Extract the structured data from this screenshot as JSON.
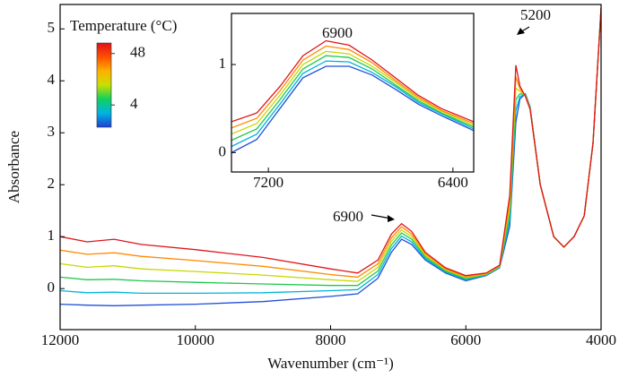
{
  "chart_data": [
    {
      "type": "line",
      "y_label": "Absorbance",
      "x_label": "Wavenumber (cm⁻¹)",
      "x": [
        12000,
        11600,
        11200,
        10800,
        10000,
        9000,
        8000,
        7600,
        7300,
        7100,
        6950,
        6800,
        6600,
        6300,
        6000,
        5700,
        5500,
        5350,
        5260,
        5200,
        5120,
        5050,
        4900,
        4700,
        4550,
        4400,
        4250,
        4120,
        4000
      ],
      "xlim": [
        12000,
        4000
      ],
      "xticks": [
        12000,
        10000,
        8000,
        6000,
        4000
      ],
      "ylim": [
        -0.79,
        5.47
      ],
      "yticks": [
        0,
        1,
        2,
        3,
        4,
        5
      ],
      "series": [
        {
          "color": "#1f4fd8",
          "values": [
            -0.3,
            -0.32,
            -0.33,
            -0.32,
            -0.3,
            -0.25,
            -0.15,
            -0.1,
            0.2,
            0.7,
            0.95,
            0.85,
            0.55,
            0.3,
            0.15,
            0.25,
            0.4,
            1.2,
            3.2,
            3.65,
            3.75,
            3.5,
            2.0,
            1.0,
            0.8,
            1.0,
            1.4,
            2.8,
            5.4
          ]
        },
        {
          "color": "#00b4d8",
          "values": [
            -0.04,
            -0.08,
            -0.07,
            -0.09,
            -0.09,
            -0.08,
            -0.04,
            -0.02,
            0.27,
            0.77,
            1.01,
            0.9,
            0.58,
            0.32,
            0.17,
            0.26,
            0.41,
            1.32,
            3.42,
            3.7,
            3.74,
            3.49,
            2.0,
            1.0,
            0.8,
            1.0,
            1.4,
            2.8,
            5.4
          ]
        },
        {
          "color": "#1ec850",
          "values": [
            0.22,
            0.17,
            0.18,
            0.15,
            0.12,
            0.09,
            0.06,
            0.06,
            0.34,
            0.84,
            1.07,
            0.95,
            0.61,
            0.34,
            0.19,
            0.27,
            0.42,
            1.44,
            3.64,
            3.75,
            3.73,
            3.48,
            2.0,
            1.0,
            0.8,
            1.0,
            1.4,
            2.8,
            5.4
          ]
        },
        {
          "color": "#c8d800",
          "values": [
            0.48,
            0.41,
            0.44,
            0.38,
            0.33,
            0.26,
            0.17,
            0.14,
            0.41,
            0.91,
            1.13,
            1.0,
            0.64,
            0.36,
            0.21,
            0.28,
            0.43,
            1.56,
            3.86,
            3.8,
            3.72,
            3.47,
            2.0,
            1.0,
            0.8,
            1.0,
            1.4,
            2.8,
            5.4
          ]
        },
        {
          "color": "#ff8a00",
          "values": [
            0.74,
            0.66,
            0.69,
            0.62,
            0.54,
            0.43,
            0.27,
            0.22,
            0.48,
            0.98,
            1.19,
            1.05,
            0.67,
            0.38,
            0.23,
            0.29,
            0.44,
            1.68,
            4.08,
            3.85,
            3.71,
            3.46,
            2.0,
            1.0,
            0.8,
            1.0,
            1.4,
            2.8,
            5.4
          ]
        },
        {
          "color": "#e0151a",
          "values": [
            1.0,
            0.9,
            0.95,
            0.85,
            0.75,
            0.6,
            0.38,
            0.3,
            0.55,
            1.05,
            1.25,
            1.1,
            0.7,
            0.4,
            0.25,
            0.3,
            0.45,
            1.8,
            4.3,
            3.9,
            3.7,
            3.45,
            2.0,
            1.0,
            0.8,
            1.0,
            1.4,
            2.8,
            5.4
          ]
        }
      ],
      "annotations": [
        "6900",
        "5200"
      ],
      "colorbar": {
        "title": "Temperature (°C)",
        "colors": [
          "#1f3fd8",
          "#00b4e0",
          "#10d060",
          "#c8e000",
          "#ffb000",
          "#ff5000",
          "#e0101a"
        ],
        "clim": [
          -15,
          57
        ],
        "ticks": [
          4,
          48
        ]
      }
    },
    {
      "type": "line",
      "x": [
        7360,
        7250,
        7150,
        7050,
        6950,
        6850,
        6750,
        6650,
        6550,
        6450,
        6310
      ],
      "xlim": [
        7360,
        6310
      ],
      "xticks": [
        7200,
        6400
      ],
      "ylim": [
        -0.22,
        1.58
      ],
      "yticks": [
        0,
        1
      ],
      "series": [
        {
          "color": "#1f4fd8",
          "values": [
            0.0,
            0.15,
            0.5,
            0.85,
            0.98,
            0.98,
            0.88,
            0.72,
            0.55,
            0.42,
            0.25
          ]
        },
        {
          "color": "#00b4d8",
          "values": [
            0.07,
            0.21,
            0.55,
            0.9,
            1.04,
            1.03,
            0.91,
            0.75,
            0.57,
            0.44,
            0.27
          ]
        },
        {
          "color": "#1ec850",
          "values": [
            0.14,
            0.27,
            0.6,
            0.95,
            1.1,
            1.08,
            0.95,
            0.77,
            0.59,
            0.45,
            0.29
          ]
        },
        {
          "color": "#c8d800",
          "values": [
            0.21,
            0.33,
            0.65,
            1.0,
            1.15,
            1.12,
            0.98,
            0.8,
            0.61,
            0.47,
            0.31
          ]
        },
        {
          "color": "#ff8a00",
          "values": [
            0.28,
            0.39,
            0.7,
            1.05,
            1.21,
            1.17,
            1.02,
            0.82,
            0.63,
            0.48,
            0.33
          ]
        },
        {
          "color": "#e0151a",
          "values": [
            0.35,
            0.45,
            0.75,
            1.1,
            1.27,
            1.22,
            1.05,
            0.85,
            0.65,
            0.5,
            0.35
          ]
        }
      ],
      "annotations": [
        "6900"
      ]
    }
  ]
}
